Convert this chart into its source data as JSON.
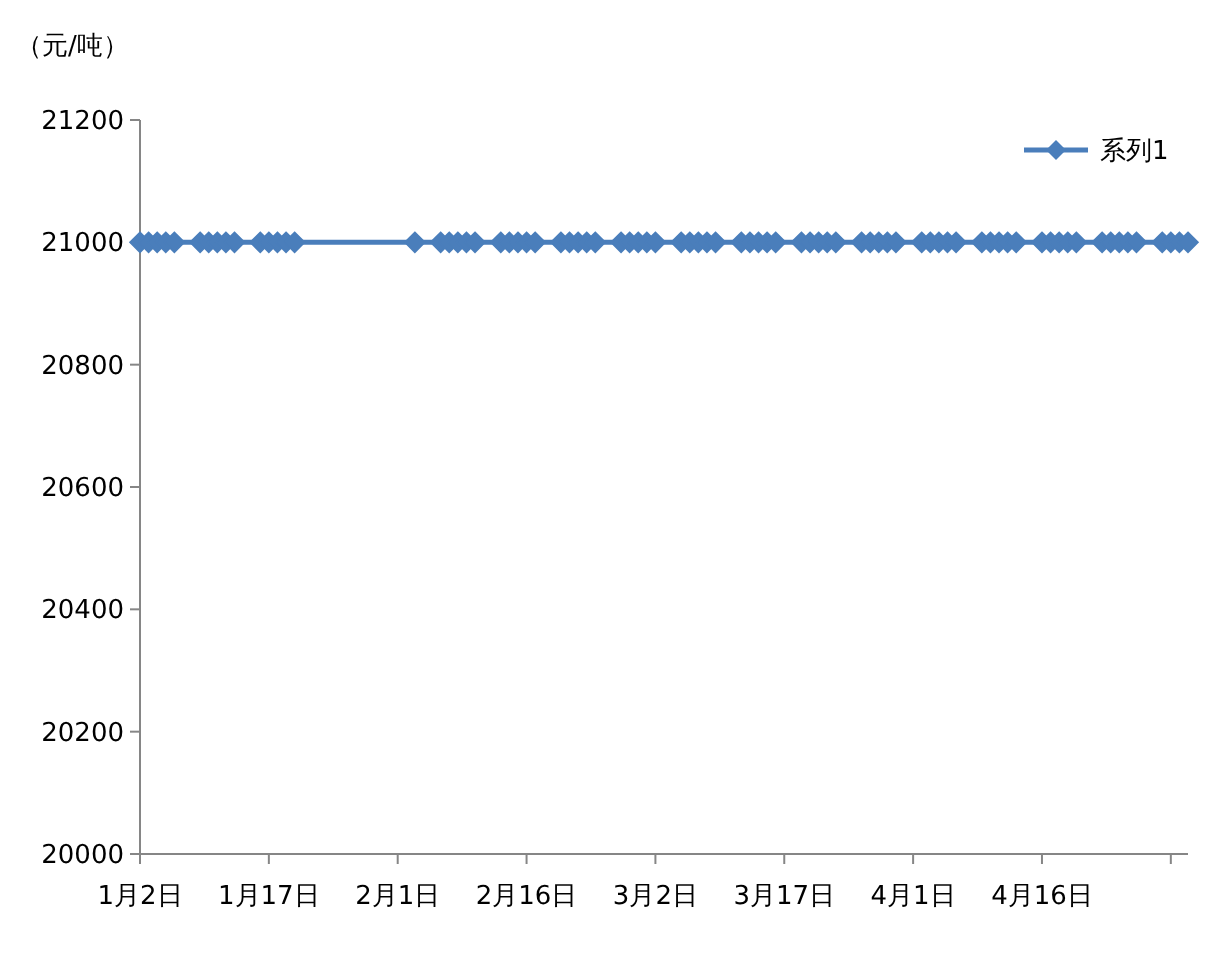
{
  "chart_data": {
    "type": "line",
    "ylabel": "（元/吨）",
    "marker": "diamond",
    "line_style": "solid",
    "legend": "top right",
    "grid": false,
    "ylim": [
      20000,
      21200
    ],
    "yticks": [
      20000,
      20200,
      20400,
      20600,
      20800,
      21000,
      21200
    ],
    "xlim": [
      "--01-02",
      "--05-03"
    ],
    "xticks": [
      {
        "value": "--01-02",
        "label": "1月2日"
      },
      {
        "value": "--01-17",
        "label": "1月17日"
      },
      {
        "value": "--02-01",
        "label": "2月1日"
      },
      {
        "value": "--02-16",
        "label": "2月16日"
      },
      {
        "value": "--03-02",
        "label": "3月2日"
      },
      {
        "value": "--03-17",
        "label": "3月17日"
      },
      {
        "value": "--04-01",
        "label": "4月1日"
      },
      {
        "value": "--04-16",
        "label": "4月16日"
      },
      {
        "value": "--05-01",
        "label": null
      }
    ],
    "x": [
      "--01-02",
      "--01-03",
      "--01-04",
      "--01-05",
      "--01-06",
      "--01-09",
      "--01-10",
      "--01-11",
      "--01-12",
      "--01-13",
      "--01-16",
      "--01-17",
      "--01-18",
      "--01-19",
      "--01-20",
      "--02-03",
      "--02-06",
      "--02-07",
      "--02-08",
      "--02-09",
      "--02-10",
      "--02-13",
      "--02-14",
      "--02-15",
      "--02-16",
      "--02-17",
      "--02-20",
      "--02-21",
      "--02-22",
      "--02-23",
      "--02-24",
      "--02-27",
      "--02-28",
      "--02-29",
      "--03-01",
      "--03-02",
      "--03-05",
      "--03-06",
      "--03-07",
      "--03-08",
      "--03-09",
      "--03-12",
      "--03-13",
      "--03-14",
      "--03-15",
      "--03-16",
      "--03-19",
      "--03-20",
      "--03-21",
      "--03-22",
      "--03-23",
      "--03-26",
      "--03-27",
      "--03-28",
      "--03-29",
      "--03-30",
      "--04-02",
      "--04-03",
      "--04-04",
      "--04-05",
      "--04-06",
      "--04-09",
      "--04-10",
      "--04-11",
      "--04-12",
      "--04-13",
      "--04-16",
      "--04-17",
      "--04-18",
      "--04-19",
      "--04-20",
      "--04-23",
      "--04-24",
      "--04-25",
      "--04-26",
      "--04-27",
      "--04-30",
      "--05-01",
      "--05-02",
      "--05-03"
    ],
    "series": [
      {
        "name": "系列1",
        "color": "#4a7ebb",
        "values": [
          21000,
          21000,
          21000,
          21000,
          21000,
          21000,
          21000,
          21000,
          21000,
          21000,
          21000,
          21000,
          21000,
          21000,
          21000,
          21000,
          21000,
          21000,
          21000,
          21000,
          21000,
          21000,
          21000,
          21000,
          21000,
          21000,
          21000,
          21000,
          21000,
          21000,
          21000,
          21000,
          21000,
          21000,
          21000,
          21000,
          21000,
          21000,
          21000,
          21000,
          21000,
          21000,
          21000,
          21000,
          21000,
          21000,
          21000,
          21000,
          21000,
          21000,
          21000,
          21000,
          21000,
          21000,
          21000,
          21000,
          21000,
          21000,
          21000,
          21000,
          21000,
          21000,
          21000,
          21000,
          21000,
          21000,
          21000,
          21000,
          21000,
          21000,
          21000,
          21000,
          21000,
          21000,
          21000,
          21000,
          21000,
          21000,
          21000,
          21000
        ]
      }
    ]
  }
}
